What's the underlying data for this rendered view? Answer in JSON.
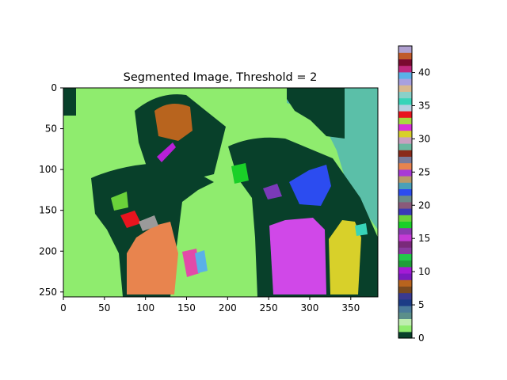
{
  "chart_data": {
    "type": "heatmap",
    "title": "Segmented Image, Threshold = 2",
    "xlabel": "",
    "ylabel": "",
    "x_range": [
      0,
      383
    ],
    "y_range": [
      0,
      256
    ],
    "y_inverted": true,
    "x_ticks": [
      0,
      50,
      100,
      150,
      200,
      250,
      300,
      350
    ],
    "y_ticks": [
      0,
      50,
      100,
      150,
      200,
      250
    ],
    "grid": false,
    "colorbar": {
      "range": [
        0,
        44
      ],
      "ticks": [
        0,
        5,
        10,
        15,
        20,
        25,
        30,
        35,
        40
      ],
      "colors": [
        "#08402a",
        "#8fec6e",
        "#bfeeb0",
        "#5b8f8a",
        "#4a7a9a",
        "#1c3c86",
        "#3a3a90",
        "#7a4a20",
        "#b8641e",
        "#7a1abf",
        "#a41ad6",
        "#1f9e3a",
        "#22c84a",
        "#8a3aa0",
        "#7a2a7a",
        "#c43ad6",
        "#8a3ab0",
        "#1ad028",
        "#6ad23a",
        "#3a3ab8",
        "#8a5a7a",
        "#6a8a8a",
        "#2c4cf0",
        "#4aa0b8",
        "#b89a6a",
        "#a83ad6",
        "#e8844e",
        "#7a7a9a",
        "#8a2a1a",
        "#6ab8a0",
        "#c8a0c0",
        "#d8d02a",
        "#d830d8",
        "#a8d840",
        "#e8141e",
        "#b6d0e0",
        "#38d4b8",
        "#8ad0c8",
        "#d8b890",
        "#a8a0e0",
        "#5ab0e8",
        "#c02a80",
        "#7a0a30",
        "#c05a2a",
        "#b0a0d0"
      ]
    },
    "segments": [
      {
        "label": 0,
        "shape": "background",
        "color": "#08402a"
      },
      {
        "label": 1,
        "shape": "background-light-green",
        "color": "#8fec6e"
      },
      {
        "label": 29,
        "shape": "upper-right-region",
        "color": "#5bbfa8"
      },
      {
        "label": 8,
        "shape": "orange-upper",
        "color": "#b8641e"
      },
      {
        "label": 26,
        "shape": "salmon-lower-left",
        "color": "#e8844e"
      },
      {
        "label": 22,
        "shape": "blue-right",
        "color": "#2c4cf0"
      },
      {
        "label": 32,
        "shape": "magenta-lower-right",
        "color": "#d048e8"
      },
      {
        "label": 31,
        "shape": "yellow-lower-right",
        "color": "#d8d02a"
      },
      {
        "label": 34,
        "shape": "red-small",
        "color": "#e8141e"
      },
      {
        "label": 18,
        "shape": "lime-small",
        "color": "#6ad23a"
      }
    ]
  }
}
